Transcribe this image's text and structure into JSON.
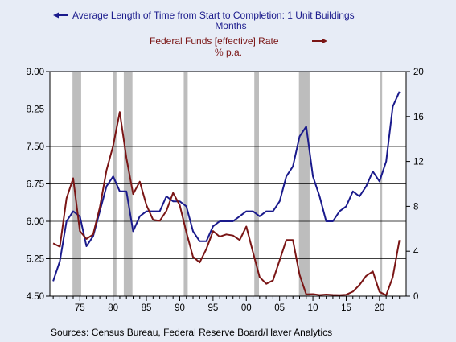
{
  "chart_data": {
    "type": "line",
    "series": [
      {
        "name": "Average Length of Time from Start to Completion: 1 Unit Buildings",
        "unit": "Months",
        "axis": "left",
        "color": "#1a1a8c",
        "x": [
          1971,
          1972,
          1973,
          1974,
          1975,
          1976,
          1977,
          1978,
          1979,
          1980,
          1981,
          1982,
          1983,
          1984,
          1985,
          1986,
          1987,
          1988,
          1989,
          1990,
          1991,
          1992,
          1993,
          1994,
          1995,
          1996,
          1997,
          1998,
          1999,
          2000,
          2001,
          2002,
          2003,
          2004,
          2005,
          2006,
          2007,
          2008,
          2009,
          2010,
          2011,
          2012,
          2013,
          2014,
          2015,
          2016,
          2017,
          2018,
          2019,
          2020,
          2021,
          2022,
          2023
        ],
        "values": [
          4.8,
          5.2,
          6.0,
          6.2,
          6.1,
          5.5,
          5.7,
          6.2,
          6.7,
          6.9,
          6.6,
          6.6,
          5.8,
          6.1,
          6.2,
          6.2,
          6.2,
          6.5,
          6.4,
          6.4,
          6.3,
          5.8,
          5.6,
          5.6,
          5.9,
          6.0,
          6.0,
          6.0,
          6.1,
          6.2,
          6.2,
          6.1,
          6.2,
          6.2,
          6.4,
          6.9,
          7.1,
          7.7,
          7.9,
          6.9,
          6.5,
          6.0,
          6.0,
          6.2,
          6.3,
          6.6,
          6.5,
          6.7,
          7.0,
          6.8,
          7.2,
          8.3,
          8.6
        ]
      },
      {
        "name": "Federal Funds [effective] Rate",
        "unit": "% p.a.",
        "axis": "right",
        "color": "#7a1515",
        "x": [
          1971,
          1972,
          1973,
          1974,
          1975,
          1976,
          1977,
          1978,
          1979,
          1980,
          1981,
          1982,
          1983,
          1984,
          1985,
          1986,
          1987,
          1988,
          1989,
          1990,
          1991,
          1992,
          1993,
          1994,
          1995,
          1996,
          1997,
          1998,
          1999,
          2000,
          2001,
          2002,
          2003,
          2004,
          2005,
          2006,
          2007,
          2008,
          2009,
          2010,
          2011,
          2012,
          2013,
          2014,
          2015,
          2016,
          2017,
          2018,
          2019,
          2020,
          2021,
          2022,
          2023
        ],
        "values": [
          4.7,
          4.4,
          8.7,
          10.5,
          5.8,
          5.1,
          5.5,
          7.9,
          11.2,
          13.4,
          16.4,
          12.3,
          9.1,
          10.2,
          8.1,
          6.8,
          6.7,
          7.6,
          9.2,
          8.1,
          5.7,
          3.5,
          3.0,
          4.2,
          5.8,
          5.3,
          5.5,
          5.4,
          5.0,
          6.2,
          3.9,
          1.7,
          1.1,
          1.4,
          3.2,
          5.0,
          5.0,
          1.9,
          0.16,
          0.18,
          0.1,
          0.14,
          0.11,
          0.09,
          0.13,
          0.4,
          1.0,
          1.8,
          2.2,
          0.38,
          0.08,
          1.7,
          5.0
        ]
      }
    ],
    "left_axis": {
      "ylim": [
        4.5,
        9.0
      ],
      "ticks": [
        "4.50",
        "5.25",
        "6.00",
        "6.75",
        "7.50",
        "8.25",
        "9.00"
      ]
    },
    "right_axis": {
      "ylim": [
        0,
        20
      ],
      "ticks": [
        "0",
        "4",
        "8",
        "12",
        "16",
        "20"
      ]
    },
    "x_axis": {
      "xlim": [
        1970.5,
        2024
      ],
      "ticks": [
        "75",
        "80",
        "85",
        "90",
        "95",
        "00",
        "05",
        "10",
        "15",
        "20"
      ]
    },
    "recessions": [
      [
        1973.9,
        1975.2
      ],
      [
        1980.0,
        1980.5
      ],
      [
        1981.6,
        1982.9
      ],
      [
        1990.6,
        1991.2
      ],
      [
        2001.2,
        2001.9
      ],
      [
        2007.9,
        2009.5
      ],
      [
        2020.1,
        2020.4
      ]
    ],
    "grid": true,
    "legend_position": "top"
  },
  "source_text": "Sources:  Census Bureau, Federal Reserve Board/Haver Analytics"
}
